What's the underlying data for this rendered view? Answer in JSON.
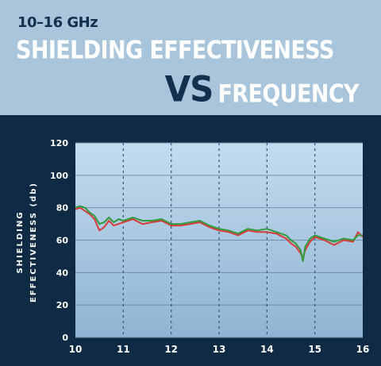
{
  "header": {
    "subtitle": "10–16 GHz",
    "title_line1": "SHIELDING EFFECTIVENESS",
    "title_vs": "VS",
    "title_line2": "FREQUENCY"
  },
  "colors": {
    "header_bg": "#a9c5dc",
    "panel_bg": "#0f2a45",
    "plot_bg_top": "#c3dbee",
    "plot_bg_bottom": "#8fb4d3",
    "grid": "#6f8fab",
    "series_red": "#d83a3a",
    "series_green": "#2f9b3c",
    "tick_text": "#ffffff"
  },
  "chart_data": {
    "type": "line",
    "xlabel": "",
    "ylabel_line1": "SHIELDING",
    "ylabel_line2": "EFFECTIVENESS (db)",
    "xlim": [
      10,
      16
    ],
    "ylim": [
      0,
      120
    ],
    "xticks": [
      10,
      11,
      12,
      13,
      14,
      15,
      16
    ],
    "yticks": [
      0,
      20,
      40,
      60,
      80,
      100,
      120
    ],
    "grid": true,
    "series": [
      {
        "color": "#d83a3a",
        "x": [
          10.0,
          10.1,
          10.2,
          10.3,
          10.4,
          10.5,
          10.6,
          10.7,
          10.8,
          10.9,
          11.0,
          11.2,
          11.4,
          11.6,
          11.8,
          12.0,
          12.2,
          12.4,
          12.6,
          12.8,
          13.0,
          13.2,
          13.4,
          13.6,
          13.8,
          14.0,
          14.2,
          14.4,
          14.5,
          14.6,
          14.7,
          14.75,
          14.8,
          14.9,
          15.0,
          15.2,
          15.4,
          15.6,
          15.8,
          15.9,
          16.0
        ],
        "y": [
          79,
          80,
          78,
          76,
          73,
          66,
          68,
          72,
          69,
          70,
          71,
          73,
          70,
          71,
          72,
          69,
          69,
          70,
          71,
          68,
          66,
          65,
          63,
          66,
          65,
          65,
          64,
          61,
          58,
          56,
          52,
          49,
          54,
          59,
          62,
          60,
          57,
          60,
          59,
          65,
          62
        ]
      },
      {
        "color": "#2f9b3c",
        "x": [
          10.0,
          10.1,
          10.2,
          10.3,
          10.4,
          10.5,
          10.6,
          10.7,
          10.8,
          10.9,
          11.0,
          11.2,
          11.4,
          11.6,
          11.8,
          12.0,
          12.2,
          12.4,
          12.6,
          12.8,
          13.0,
          13.2,
          13.4,
          13.6,
          13.8,
          14.0,
          14.2,
          14.4,
          14.5,
          14.6,
          14.7,
          14.75,
          14.8,
          14.9,
          15.0,
          15.2,
          15.4,
          15.6,
          15.8,
          15.9,
          16.0
        ],
        "y": [
          80,
          81,
          80,
          77,
          75,
          70,
          71,
          74,
          71,
          73,
          72,
          74,
          72,
          72,
          73,
          70,
          70,
          71,
          72,
          69,
          67,
          66,
          64,
          67,
          66,
          67,
          65,
          63,
          60,
          58,
          54,
          47,
          56,
          61,
          63,
          61,
          59,
          61,
          60,
          63,
          63
        ]
      }
    ]
  }
}
